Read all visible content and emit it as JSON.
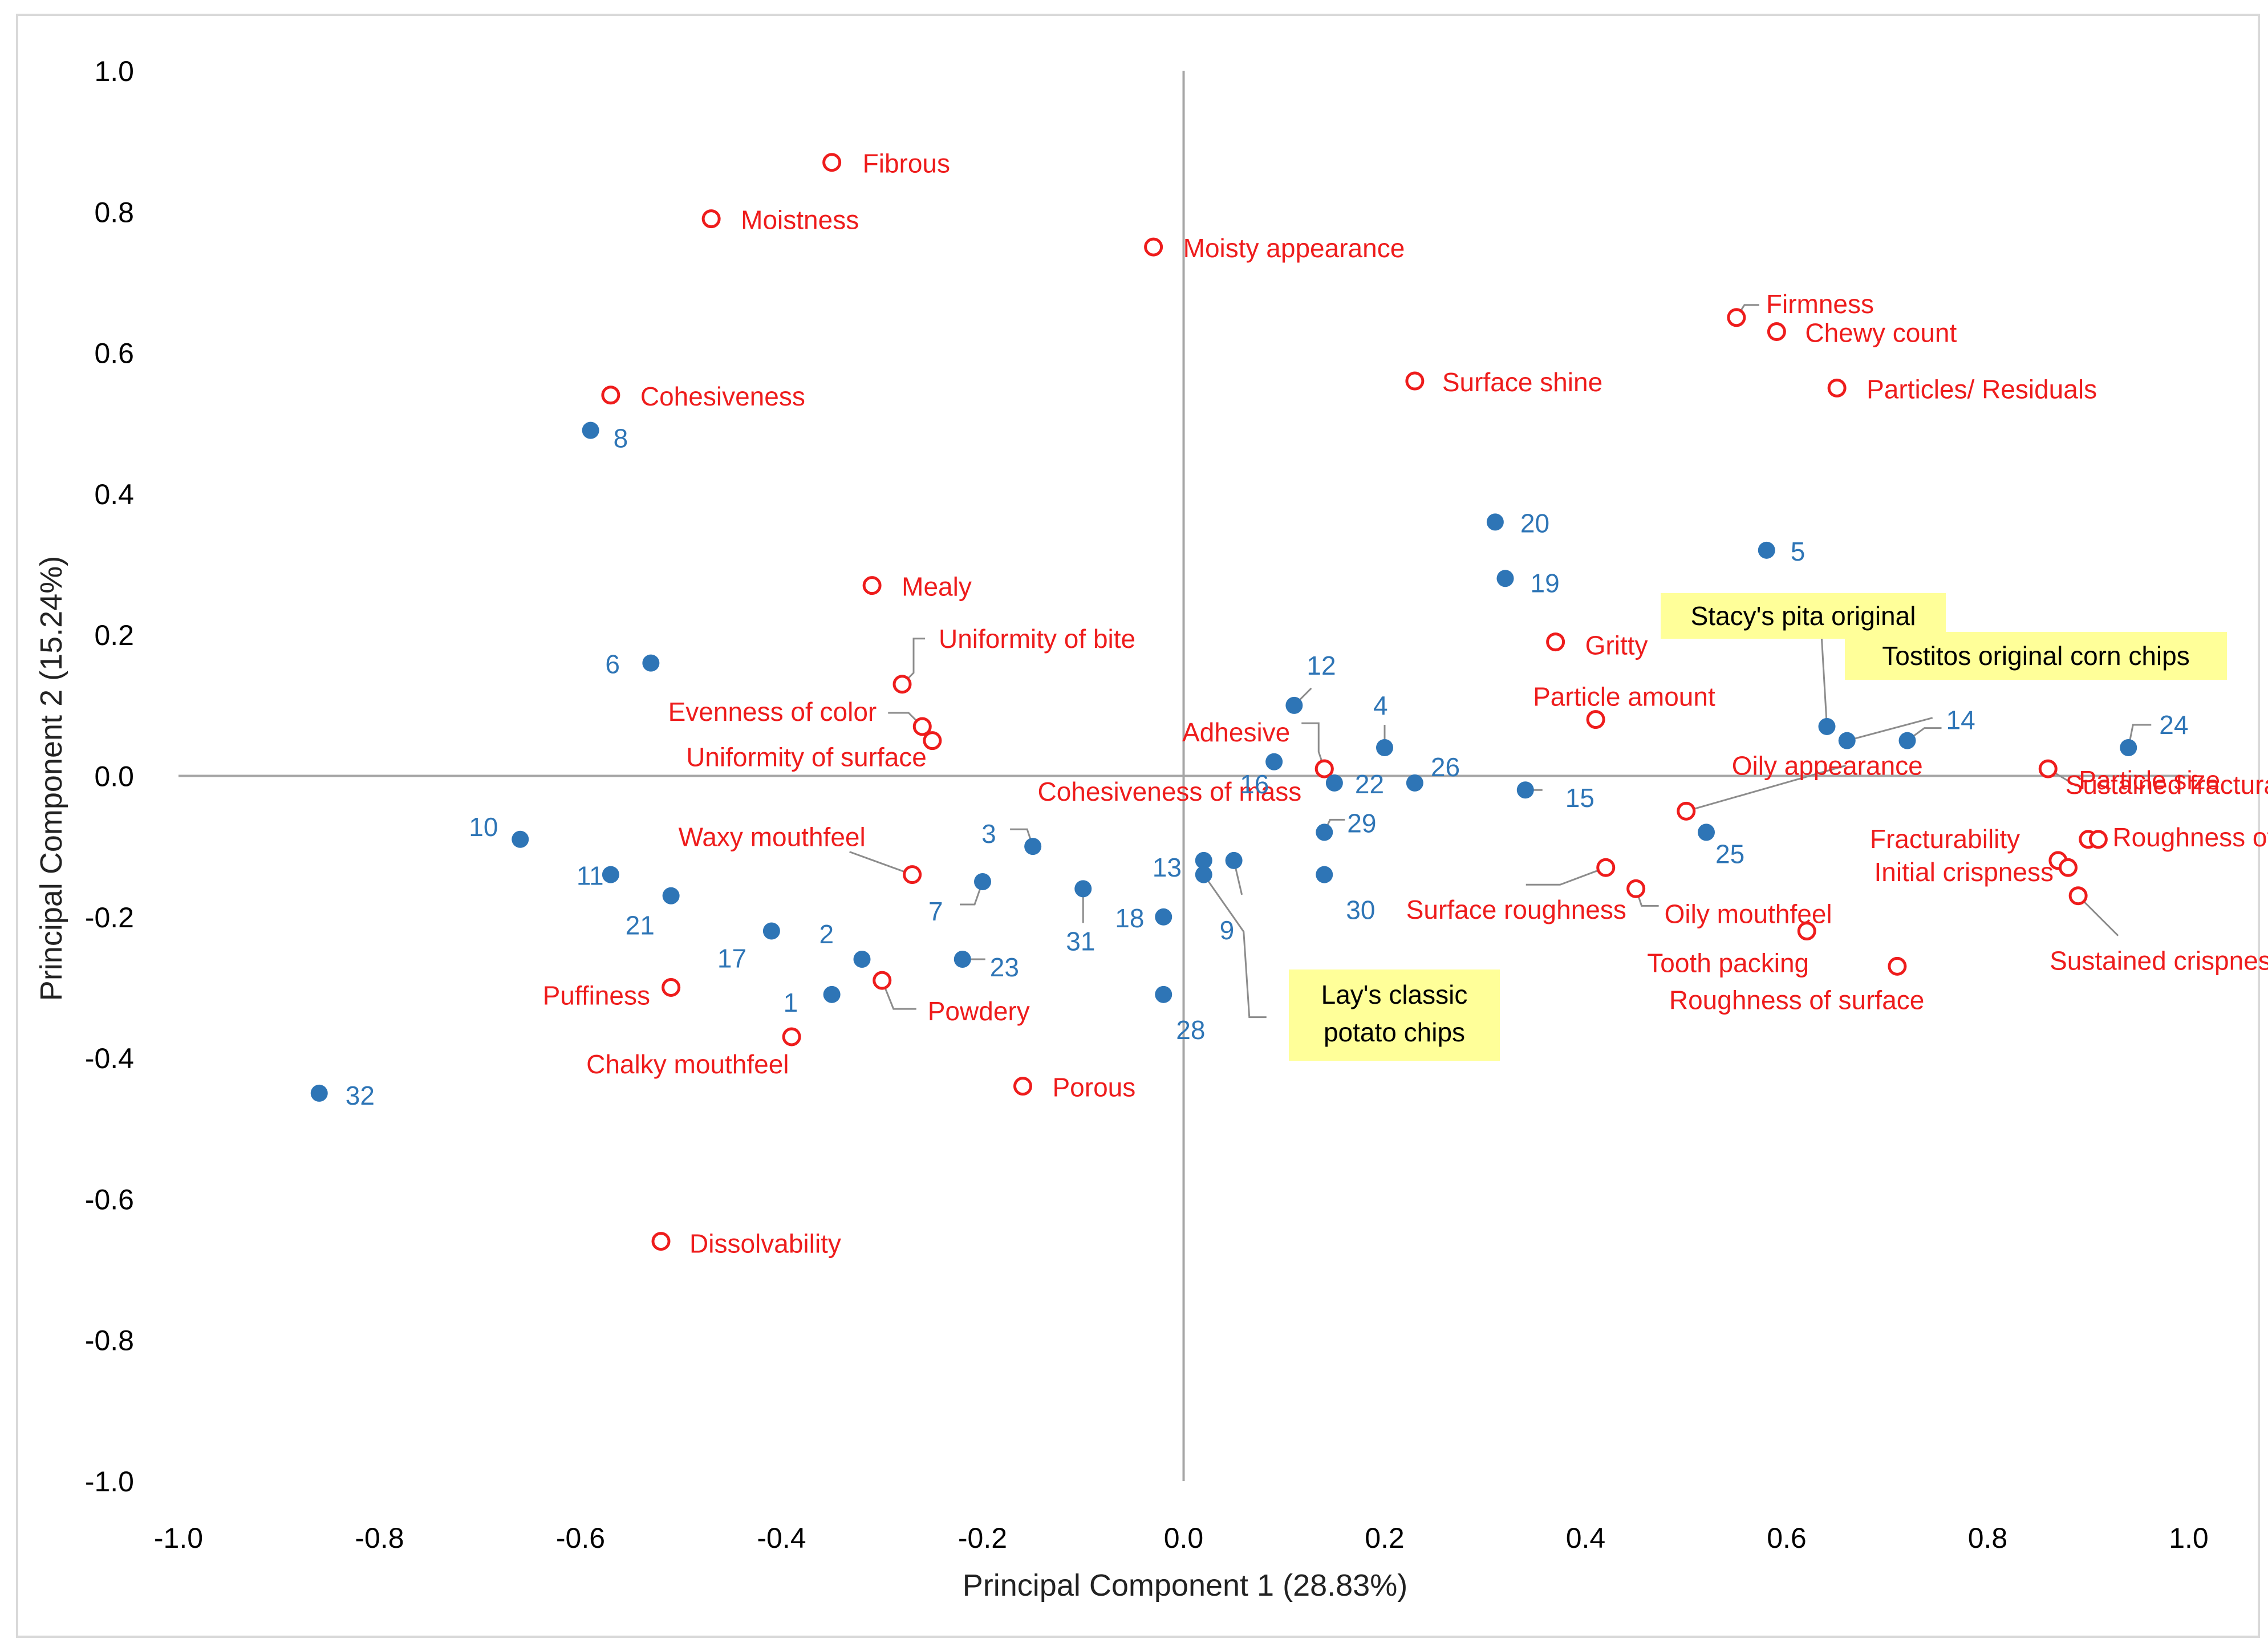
{
  "chart_data": {
    "type": "scatter",
    "title": "",
    "xlabel": "Principal Component 1 (28.83%)",
    "ylabel": "Principal Component 2 (15.24%)",
    "xlim": [
      -1.0,
      1.0
    ],
    "ylim": [
      -1.0,
      1.0
    ],
    "x_ticks": [
      "-1.0",
      "-0.8",
      "-0.6",
      "-0.4",
      "-0.2",
      "0.0",
      "0.2",
      "0.4",
      "0.6",
      "0.8",
      "1.0"
    ],
    "y_ticks": [
      "1.0",
      "0.8",
      "0.6",
      "0.4",
      "0.2",
      "0.0",
      "-0.2",
      "-0.4",
      "-0.6",
      "-0.8",
      "-1.0"
    ],
    "grid": false,
    "colors": {
      "attributes": "#ee1c1c",
      "samples": "#2e75b6",
      "callout_fill": "#ffff99",
      "axis": "#a6a6a6"
    },
    "series": [
      {
        "name": "Attributes",
        "marker": "open-circle",
        "points": [
          {
            "label": "Fibrous",
            "x": -0.35,
            "y": 0.87
          },
          {
            "label": "Moistness",
            "x": -0.47,
            "y": 0.79
          },
          {
            "label": "Moisty appearance",
            "x": -0.03,
            "y": 0.75
          },
          {
            "label": "Firmness",
            "x": 0.55,
            "y": 0.65
          },
          {
            "label": "Chewy count",
            "x": 0.59,
            "y": 0.63
          },
          {
            "label": "Surface shine",
            "x": 0.23,
            "y": 0.56
          },
          {
            "label": "Particles/ Residuals",
            "x": 0.65,
            "y": 0.55
          },
          {
            "label": "Cohesiveness",
            "x": -0.57,
            "y": 0.54
          },
          {
            "label": "Mealy",
            "x": -0.31,
            "y": 0.27
          },
          {
            "label": "Uniformity of bite",
            "x": -0.28,
            "y": 0.13
          },
          {
            "label": "Gritty",
            "x": 0.37,
            "y": 0.19
          },
          {
            "label": "Particle amount",
            "x": 0.41,
            "y": 0.08
          },
          {
            "label": "Evenness of color",
            "x": -0.26,
            "y": 0.07
          },
          {
            "label": "Uniformity of surface",
            "x": -0.25,
            "y": 0.05
          },
          {
            "label": "Adhesive",
            "x": 0.14,
            "y": 0.01
          },
          {
            "label": "Cohesiveness of mass",
            "x": 0.14,
            "y": 0.01
          },
          {
            "label": "Particle size",
            "x": 0.86,
            "y": 0.01
          },
          {
            "label": "Oily appearance",
            "x": 0.5,
            "y": -0.05
          },
          {
            "label": "Sustained fracturability",
            "x": 0.9,
            "y": -0.09
          },
          {
            "label": "Fracturability",
            "x": 0.87,
            "y": -0.12
          },
          {
            "label": "Roughness of mass",
            "x": 0.91,
            "y": -0.09
          },
          {
            "label": "Initial crispness",
            "x": 0.88,
            "y": -0.13
          },
          {
            "label": "Sustained crispness",
            "x": 0.89,
            "y": -0.17
          },
          {
            "label": "Surface roughness",
            "x": 0.42,
            "y": -0.13
          },
          {
            "label": "Oily mouthfeel",
            "x": 0.45,
            "y": -0.16
          },
          {
            "label": "Tooth packing",
            "x": 0.62,
            "y": -0.22
          },
          {
            "label": "Roughness of surface",
            "x": 0.71,
            "y": -0.27
          },
          {
            "label": "Waxy mouthfeel",
            "x": -0.27,
            "y": -0.14
          },
          {
            "label": "Puffiness",
            "x": -0.51,
            "y": -0.3
          },
          {
            "label": "Powdery",
            "x": -0.3,
            "y": -0.29
          },
          {
            "label": "Chalky mouthfeel",
            "x": -0.39,
            "y": -0.37
          },
          {
            "label": "Porous",
            "x": -0.16,
            "y": -0.44
          },
          {
            "label": "Dissolvability",
            "x": -0.52,
            "y": -0.66
          }
        ]
      },
      {
        "name": "Samples",
        "marker": "filled-circle",
        "points": [
          {
            "label": "1",
            "x": -0.35,
            "y": -0.31
          },
          {
            "label": "2",
            "x": -0.32,
            "y": -0.26
          },
          {
            "label": "3",
            "x": -0.15,
            "y": -0.1
          },
          {
            "label": "4",
            "x": 0.2,
            "y": 0.04
          },
          {
            "label": "5",
            "x": 0.58,
            "y": 0.32
          },
          {
            "label": "6",
            "x": -0.53,
            "y": 0.16
          },
          {
            "label": "7",
            "x": -0.2,
            "y": -0.15
          },
          {
            "label": "8",
            "x": -0.59,
            "y": 0.49
          },
          {
            "label": "9",
            "x": 0.05,
            "y": -0.12
          },
          {
            "label": "10",
            "x": -0.66,
            "y": -0.09
          },
          {
            "label": "11",
            "x": -0.57,
            "y": -0.14
          },
          {
            "label": "12",
            "x": 0.11,
            "y": 0.1
          },
          {
            "label": "13",
            "x": 0.02,
            "y": -0.12
          },
          {
            "label": "14",
            "x": 0.72,
            "y": 0.05
          },
          {
            "label": "15",
            "x": 0.34,
            "y": -0.02
          },
          {
            "label": "16",
            "x": 0.09,
            "y": 0.02
          },
          {
            "label": "17",
            "x": -0.41,
            "y": -0.22
          },
          {
            "label": "18",
            "x": -0.02,
            "y": -0.2
          },
          {
            "label": "19",
            "x": 0.32,
            "y": 0.28
          },
          {
            "label": "20",
            "x": 0.31,
            "y": 0.36
          },
          {
            "label": "21",
            "x": -0.51,
            "y": -0.17
          },
          {
            "label": "22",
            "x": 0.15,
            "y": -0.01
          },
          {
            "label": "23",
            "x": -0.22,
            "y": -0.26
          },
          {
            "label": "24",
            "x": 0.94,
            "y": 0.04
          },
          {
            "label": "25",
            "x": 0.52,
            "y": -0.08
          },
          {
            "label": "26",
            "x": 0.23,
            "y": -0.01
          },
          {
            "label": "28",
            "x": -0.02,
            "y": -0.31
          },
          {
            "label": "29",
            "x": 0.14,
            "y": -0.08
          },
          {
            "label": "30",
            "x": 0.14,
            "y": -0.14
          },
          {
            "label": "31",
            "x": -0.1,
            "y": -0.16
          },
          {
            "label": "32",
            "x": -0.86,
            "y": -0.45
          },
          {
            "label": "Stacy's pita original",
            "x": 0.64,
            "y": 0.07
          },
          {
            "label": "Tostitos original corn chips",
            "x": 0.66,
            "y": 0.05
          },
          {
            "label": "Lay's classic potato chips",
            "x": 0.02,
            "y": -0.14
          }
        ]
      }
    ],
    "annotations": [
      "Stacy's pita original",
      "Tostitos original corn chips",
      "Lay's classic potato chips"
    ]
  }
}
